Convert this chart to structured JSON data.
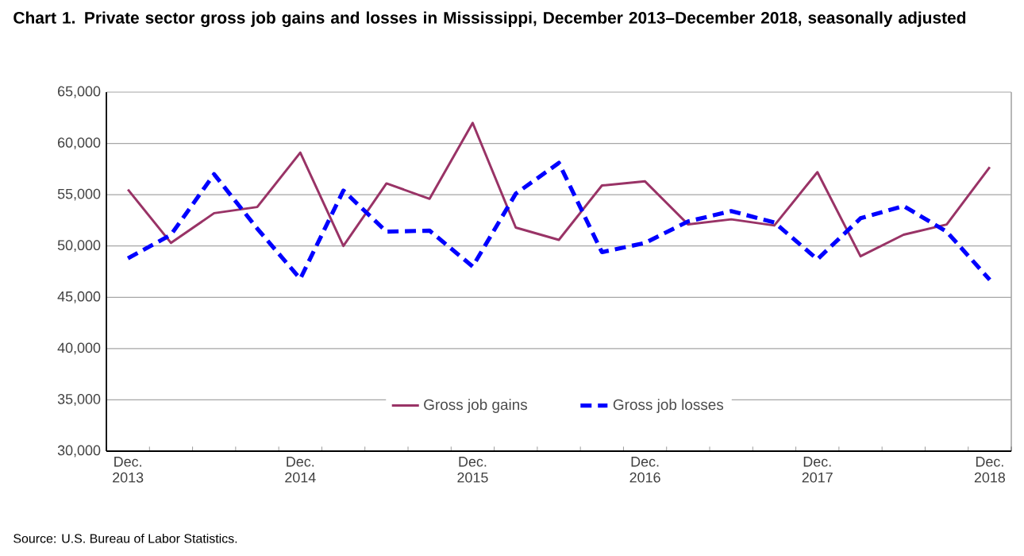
{
  "chart_data": {
    "type": "line",
    "title": "Chart 1. Private sector gross  job gains and losses  in Mississippi,  December 2013–December 2018, seasonally adjusted",
    "categories": [
      "Dec. 2013",
      null,
      null,
      null,
      "Dec. 2014",
      null,
      null,
      null,
      "Dec. 2015",
      null,
      null,
      null,
      "Dec. 2016",
      null,
      null,
      null,
      "Dec. 2017",
      null,
      null,
      null,
      "Dec. 2018"
    ],
    "series": [
      {
        "name": "Gross job gains",
        "color": "#993366",
        "line_style": "solid",
        "values": [
          55500,
          50300,
          53200,
          53800,
          59100,
          50000,
          56100,
          54600,
          62000,
          51800,
          50600,
          55900,
          56300,
          52100,
          52600,
          52000,
          57200,
          49000,
          51100,
          52100,
          57700
        ]
      },
      {
        "name": "Gross job losses",
        "color": "#0000ff",
        "line_style": "dashed",
        "values": [
          48800,
          51100,
          57000,
          51700,
          46800,
          55400,
          51400,
          51500,
          48000,
          55100,
          58100,
          49400,
          50300,
          52400,
          53400,
          52300,
          48700,
          52700,
          53900,
          51400,
          46700
        ]
      }
    ],
    "ylim": [
      30000,
      65000
    ],
    "yticks": [
      {
        "value": 30000,
        "label": "30,000"
      },
      {
        "value": 35000,
        "label": "35,000"
      },
      {
        "value": 40000,
        "label": "40,000"
      },
      {
        "value": 45000,
        "label": "45,000"
      },
      {
        "value": 50000,
        "label": "50,000"
      },
      {
        "value": 55000,
        "label": "55,000"
      },
      {
        "value": 60000,
        "label": "60,000"
      },
      {
        "value": 65000,
        "label": "65,000"
      }
    ],
    "grid": "y",
    "legend": "bottom",
    "annotations": [
      "Source: U.S. Bureau of Labor Statistics."
    ]
  }
}
